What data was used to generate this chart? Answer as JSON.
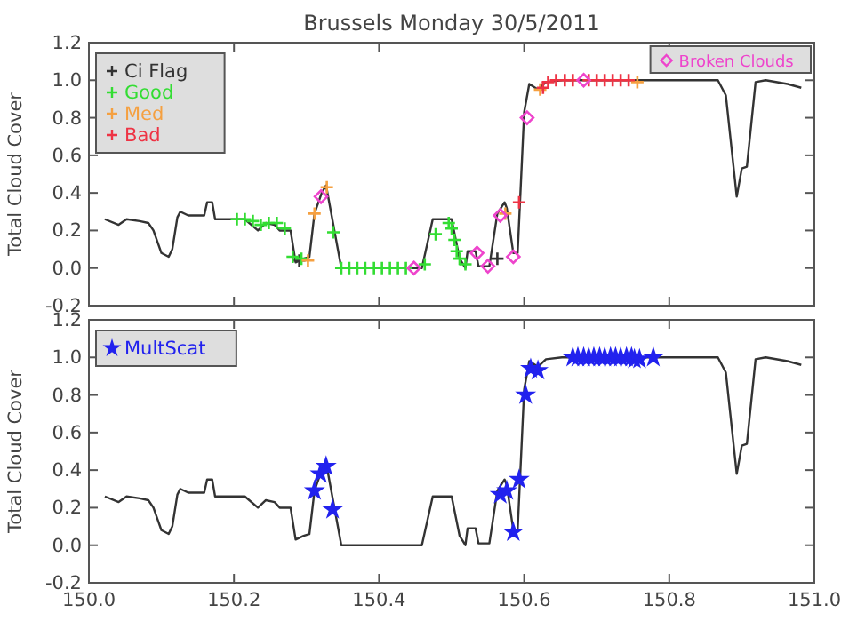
{
  "chart_data": [
    {
      "type": "line",
      "title": "Brussels Monday 30/5/2011",
      "ylabel": "Total Cloud Cover",
      "xlim": [
        150,
        151
      ],
      "ylim": [
        -0.2,
        1.2
      ],
      "xticks": [
        150,
        150.2,
        150.4,
        150.6,
        150.8,
        151
      ],
      "yticks": [
        {
          "value": -0.2,
          "label": "-0.2"
        },
        {
          "value": 0,
          "label": "0.0"
        },
        {
          "value": 0.2,
          "label": "0.2"
        },
        {
          "value": 0.4,
          "label": "0.4"
        },
        {
          "value": 0.6,
          "label": "0.6"
        },
        {
          "value": 0.8,
          "label": "0.8"
        },
        {
          "value": 1,
          "label": "1.0"
        },
        {
          "value": 1.2,
          "label": "1.2"
        }
      ],
      "tick_labels": "y",
      "grid": false,
      "legend": "top left",
      "series": [
        {
          "color": "#333333",
          "line_style": "solid",
          "marker": "none",
          "x": [
            150.022,
            150.041,
            150.052,
            150.07,
            150.082,
            150.089,
            150.1,
            150.11,
            150.115,
            150.122,
            150.126,
            150.137,
            150.148,
            150.159,
            150.163,
            150.17,
            150.174,
            150.2,
            150.215,
            150.233,
            150.244,
            150.256,
            150.263,
            150.278,
            150.285,
            150.296,
            150.304,
            150.311,
            150.321,
            150.327,
            150.337,
            150.348,
            150.459,
            150.474,
            150.5,
            150.511,
            150.519,
            150.522,
            150.533,
            150.537,
            150.552,
            150.563,
            150.573,
            150.576,
            150.585,
            150.591,
            150.6,
            150.607,
            150.619,
            150.63,
            150.652,
            150.867,
            150.878,
            150.893,
            150.9,
            150.907,
            150.919,
            150.933,
            150.963,
            150.982
          ],
          "values": [
            0.26,
            0.23,
            0.26,
            0.25,
            0.24,
            0.2,
            0.08,
            0.06,
            0.1,
            0.27,
            0.3,
            0.28,
            0.28,
            0.28,
            0.35,
            0.35,
            0.26,
            0.26,
            0.26,
            0.2,
            0.24,
            0.23,
            0.2,
            0.2,
            0.03,
            0.05,
            0.06,
            0.29,
            0.4,
            0.44,
            0.23,
            0,
            0,
            0.26,
            0.26,
            0.05,
            0,
            0.09,
            0.09,
            0.01,
            0.01,
            0.29,
            0.35,
            0.32,
            0.08,
            0.08,
            0.83,
            0.98,
            0.95,
            0.99,
            1,
            1,
            0.92,
            0.38,
            0.53,
            0.54,
            0.99,
            1,
            0.98,
            0.96
          ]
        },
        {
          "name": "Ci Flag",
          "type": "scatter",
          "marker": "cross",
          "color": "#333333",
          "x": [
            150.29,
            150.563
          ],
          "values": [
            0.04,
            0.05
          ]
        },
        {
          "name": "Good",
          "type": "scatter",
          "marker": "cross",
          "color": "#33dd33",
          "x": [
            150.204,
            150.215,
            150.226,
            150.237,
            150.248,
            150.259,
            150.27,
            150.281,
            150.293,
            150.337,
            150.348,
            150.359,
            150.37,
            150.381,
            150.393,
            150.404,
            150.415,
            150.426,
            150.437,
            150.463,
            150.478,
            150.496,
            150.5,
            150.504,
            150.507,
            150.511,
            150.519
          ],
          "values": [
            0.26,
            0.26,
            0.25,
            0.23,
            0.24,
            0.24,
            0.21,
            0.06,
            0.05,
            0.19,
            0,
            0,
            0,
            0,
            0,
            0,
            0,
            0,
            0,
            0.02,
            0.18,
            0.24,
            0.21,
            0.15,
            0.09,
            0.05,
            0.02
          ]
        },
        {
          "name": "Med",
          "type": "scatter",
          "marker": "cross",
          "color": "#f5a040",
          "x": [
            150.302,
            150.311,
            150.328,
            150.574,
            150.622,
            150.756
          ],
          "values": [
            0.04,
            0.29,
            0.43,
            0.29,
            0.95,
            0.99
          ]
        },
        {
          "name": "Bad",
          "type": "scatter",
          "marker": "cross",
          "color": "#ee3344",
          "x": [
            150.593,
            150.626,
            150.633,
            150.644,
            150.656,
            150.667,
            150.689,
            150.7,
            150.711,
            150.722,
            150.733,
            150.744
          ],
          "values": [
            0.35,
            0.96,
            0.99,
            1,
            1,
            1,
            1,
            1,
            1,
            1,
            1,
            1
          ]
        },
        {
          "name": "Broken Clouds",
          "type": "scatter",
          "marker": "diamond",
          "color": "#ee44cc",
          "x": [
            150.32,
            150.448,
            150.535,
            150.55,
            150.567,
            150.585,
            150.604,
            150.682
          ],
          "values": [
            0.38,
            0,
            0.08,
            0.01,
            0.28,
            0.06,
            0.8,
            1
          ]
        }
      ]
    },
    {
      "type": "line",
      "xlim": [
        150,
        151
      ],
      "ylim": [
        -0.2,
        1.2
      ],
      "ylabel": "Total Cloud Cover",
      "xticks": [
        {
          "value": 150,
          "label": "150.0"
        },
        {
          "value": 150.2,
          "label": "150.2"
        },
        {
          "value": 150.4,
          "label": "150.4"
        },
        {
          "value": 150.6,
          "label": "150.6"
        },
        {
          "value": 150.8,
          "label": "150.8"
        },
        {
          "value": 151,
          "label": "151.0"
        }
      ],
      "yticks": [
        {
          "value": -0.2,
          "label": "-0.2"
        },
        {
          "value": 0,
          "label": "0.0"
        },
        {
          "value": 0.2,
          "label": "0.2"
        },
        {
          "value": 0.4,
          "label": "0.4"
        },
        {
          "value": 0.6,
          "label": "0.6"
        },
        {
          "value": 0.8,
          "label": "0.8"
        },
        {
          "value": 1,
          "label": "1.0"
        },
        {
          "value": 1.2,
          "label": "1.2"
        }
      ],
      "grid": false,
      "legend": "top left",
      "series": [
        {
          "color": "#333333",
          "line_style": "solid",
          "marker": "none",
          "x": [
            150.022,
            150.041,
            150.052,
            150.07,
            150.082,
            150.089,
            150.1,
            150.11,
            150.115,
            150.122,
            150.126,
            150.137,
            150.148,
            150.159,
            150.163,
            150.17,
            150.174,
            150.2,
            150.215,
            150.233,
            150.244,
            150.256,
            150.263,
            150.278,
            150.285,
            150.296,
            150.304,
            150.311,
            150.321,
            150.327,
            150.337,
            150.348,
            150.459,
            150.474,
            150.5,
            150.511,
            150.519,
            150.522,
            150.533,
            150.537,
            150.552,
            150.563,
            150.573,
            150.576,
            150.585,
            150.591,
            150.6,
            150.607,
            150.619,
            150.63,
            150.652,
            150.867,
            150.878,
            150.893,
            150.9,
            150.907,
            150.919,
            150.933,
            150.963,
            150.982
          ],
          "values": [
            0.26,
            0.23,
            0.26,
            0.25,
            0.24,
            0.2,
            0.08,
            0.06,
            0.1,
            0.27,
            0.3,
            0.28,
            0.28,
            0.28,
            0.35,
            0.35,
            0.26,
            0.26,
            0.26,
            0.2,
            0.24,
            0.23,
            0.2,
            0.2,
            0.03,
            0.05,
            0.06,
            0.29,
            0.4,
            0.44,
            0.23,
            0,
            0,
            0.26,
            0.26,
            0.05,
            0,
            0.09,
            0.09,
            0.01,
            0.01,
            0.29,
            0.35,
            0.32,
            0.08,
            0.08,
            0.83,
            0.98,
            0.95,
            0.99,
            1,
            1,
            0.92,
            0.38,
            0.53,
            0.54,
            0.99,
            1,
            0.98,
            0.96
          ]
        },
        {
          "name": "MultScat",
          "type": "scatter",
          "marker": "star",
          "color": "#2222ee",
          "x": [
            150.311,
            150.319,
            150.327,
            150.336,
            150.567,
            150.576,
            150.585,
            150.593,
            150.602,
            150.609,
            150.619,
            150.667,
            150.674,
            150.682,
            150.689,
            150.696,
            150.704,
            150.711,
            150.719,
            150.726,
            150.733,
            150.741,
            150.748,
            150.752,
            150.759,
            150.778
          ],
          "values": [
            0.29,
            0.38,
            0.42,
            0.19,
            0.27,
            0.29,
            0.07,
            0.35,
            0.8,
            0.94,
            0.93,
            1,
            1,
            1,
            1,
            1,
            1,
            1,
            1,
            1,
            1,
            1,
            1,
            0.99,
            0.99,
            1
          ]
        }
      ]
    }
  ]
}
